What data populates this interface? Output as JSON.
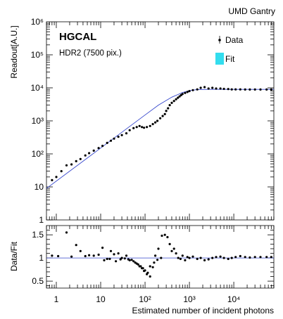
{
  "header": {
    "experiment": "UMD Gantry",
    "title": "HGCAL",
    "subtitle": "HDR2 (7500 pix.)"
  },
  "legend": {
    "data_label": "Data",
    "fit_label": "Fit",
    "fit_color": "#33ddee"
  },
  "colors": {
    "fit_line": "#3344cc",
    "points": "#000000"
  },
  "chart_data": [
    {
      "type": "scatter",
      "ylabel": "Readout[A.U.]",
      "xscale": "log",
      "yscale": "log",
      "xlim": [
        0.6,
        80000
      ],
      "ylim": [
        1,
        1000000
      ],
      "xticks": [
        {
          "v": 1,
          "label": "1"
        },
        {
          "v": 10,
          "label": "10"
        },
        {
          "v": 100,
          "label": "10²"
        },
        {
          "v": 1000,
          "label": "10³"
        },
        {
          "v": 10000,
          "label": "10⁴"
        }
      ],
      "yticks": [
        {
          "v": 1,
          "label": "1"
        },
        {
          "v": 10,
          "label": "10"
        },
        {
          "v": 100,
          "label": "10²"
        },
        {
          "v": 1000,
          "label": "10³"
        },
        {
          "v": 10000,
          "label": "10⁴"
        },
        {
          "v": 100000,
          "label": "10⁵"
        },
        {
          "v": 1000000,
          "label": "10⁶"
        }
      ],
      "series": [
        {
          "kind": "points",
          "x": [
            0.8,
            1.0,
            1.3,
            1.7,
            2.2,
            2.8,
            3.5,
            4.5,
            5.5,
            7,
            9,
            11,
            14,
            17,
            20,
            25,
            30,
            38,
            45,
            55,
            65,
            75,
            85,
            95,
            110,
            130,
            150,
            170,
            190,
            220,
            250,
            280,
            300,
            330,
            360,
            400,
            450,
            500,
            550,
            600,
            650,
            700,
            800,
            900,
            1000,
            1200,
            1500,
            1800,
            2200,
            2700,
            3300,
            4000,
            5000,
            6000,
            7500,
            9000,
            11000,
            14000,
            18000,
            23000,
            30000,
            40000,
            55000,
            70000
          ],
          "y": [
            16,
            20,
            30,
            45,
            48,
            60,
            70,
            90,
            105,
            125,
            150,
            175,
            215,
            250,
            290,
            330,
            370,
            420,
            520,
            600,
            650,
            700,
            650,
            620,
            650,
            700,
            800,
            900,
            1000,
            1200,
            1400,
            1600,
            2000,
            2400,
            3000,
            3500,
            4000,
            4500,
            5000,
            5500,
            6000,
            6500,
            7000,
            7500,
            8000,
            8500,
            9000,
            10000,
            10500,
            9500,
            10000,
            9500,
            9500,
            9300,
            9200,
            9000,
            9000,
            9000,
            8900,
            8900,
            8900,
            8900,
            8900,
            8900
          ]
        },
        {
          "kind": "fit",
          "x": [
            0.6,
            10,
            100,
            200,
            400,
            700,
            1000,
            1500,
            3000,
            10000,
            80000
          ],
          "y": [
            9,
            150,
            1500,
            3000,
            5200,
            7200,
            8200,
            8900,
            9000,
            9000,
            9000
          ]
        }
      ]
    },
    {
      "type": "scatter",
      "xlabel": "Estimated number of incident photons",
      "ylabel": "Data/Fit",
      "xscale": "log",
      "xlim": [
        0.6,
        80000
      ],
      "ylim": [
        0.35,
        1.7
      ],
      "xticks": [
        {
          "v": 1,
          "label": "1"
        },
        {
          "v": 10,
          "label": "10"
        },
        {
          "v": 100,
          "label": "10²"
        },
        {
          "v": 1000,
          "label": "10³"
        },
        {
          "v": 10000,
          "label": "10⁴"
        }
      ],
      "yticks": [
        {
          "v": 0.5,
          "label": "0.5"
        },
        {
          "v": 1,
          "label": "1"
        },
        {
          "v": 1.5,
          "label": "1.5"
        }
      ],
      "reference_line": 1,
      "series": [
        {
          "kind": "points",
          "x": [
            0.8,
            1.1,
            1.7,
            2.2,
            2.8,
            3.5,
            4.5,
            5.5,
            7,
            9,
            11,
            14,
            17,
            20,
            25,
            30,
            38,
            45,
            55,
            65,
            75,
            85,
            95,
            110,
            130,
            150,
            170,
            200,
            240,
            280,
            320,
            360,
            400,
            450,
            500,
            560,
            630,
            700,
            800,
            900,
            1000,
            1200,
            1500,
            1800,
            2200,
            2700,
            3300,
            4000,
            5000,
            6000,
            7500,
            9000,
            11000,
            14000,
            18000,
            23000,
            30000,
            40000,
            55000,
            70000,
            12,
            16,
            22,
            28,
            35,
            42,
            50,
            60,
            70,
            80,
            90,
            100,
            115,
            130,
            160,
            190,
            230
          ],
          "y": [
            1.05,
            1.04,
            1.55,
            1.03,
            1.28,
            1.15,
            1.04,
            1.06,
            1.05,
            1.07,
            1.22,
            0.98,
            1.15,
            1.08,
            1.1,
            1.0,
            1.05,
            0.95,
            0.93,
            0.88,
            0.82,
            0.78,
            0.72,
            0.65,
            0.6,
            0.8,
            1.05,
            1.2,
            1.48,
            1.5,
            1.45,
            1.3,
            1.15,
            1.2,
            1.1,
            1.0,
            0.98,
            1.05,
            0.95,
            1.02,
            1.0,
            1.03,
            0.98,
            1.0,
            0.95,
            0.97,
            1.0,
            1.02,
            1.03,
            1.0,
            0.98,
            1.0,
            1.02,
            1.04,
            1.02,
            1.01,
            1.02,
            1.02,
            1.02,
            1.02,
            0.95,
            0.98,
            0.93,
            0.97,
            0.99,
            0.97,
            0.96,
            0.9,
            0.86,
            0.82,
            0.78,
            0.73,
            0.68,
            0.82,
            0.9,
            0.96,
            1.0
          ]
        }
      ]
    }
  ]
}
